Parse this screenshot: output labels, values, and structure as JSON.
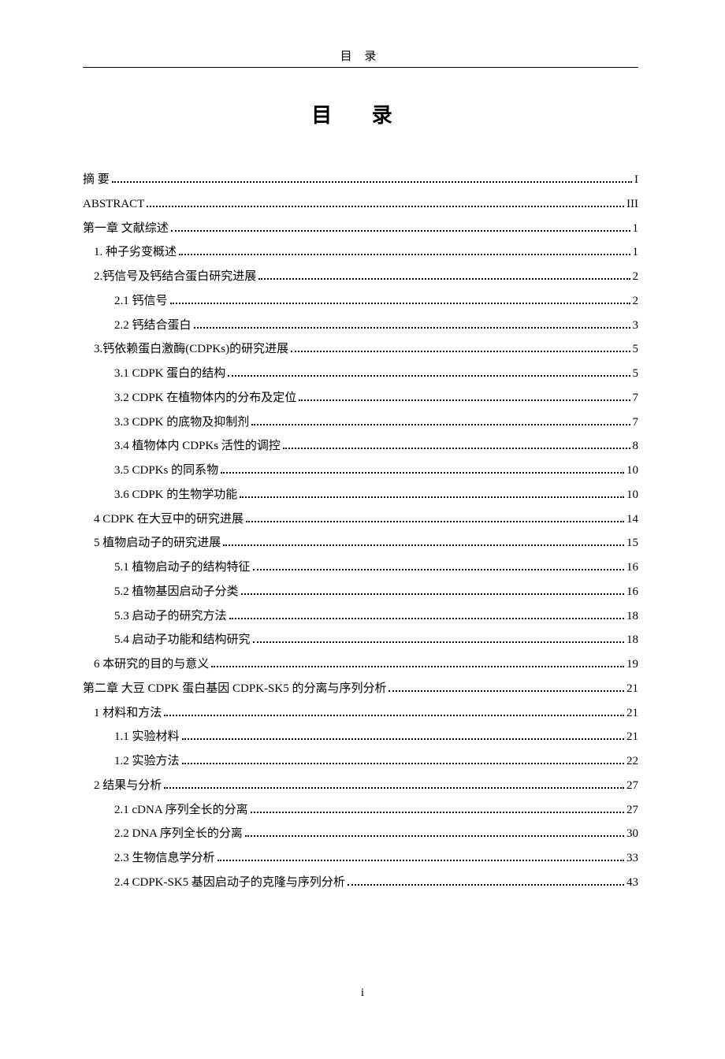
{
  "header_label": "目 录",
  "main_title": "目 录",
  "footer_page": "i",
  "entries": [
    {
      "level": 0,
      "label": "摘   要",
      "page": "I"
    },
    {
      "level": 0,
      "label": "ABSTRACT",
      "page": "III"
    },
    {
      "level": 0,
      "label": "第一章 文献综述",
      "page": "1"
    },
    {
      "level": 1,
      "label": "1.  种子劣变概述",
      "page": "1"
    },
    {
      "level": 1,
      "label": "2.钙信号及钙结合蛋白研究进展",
      "page": "2"
    },
    {
      "level": 2,
      "label": "2.1 钙信号",
      "page": "2"
    },
    {
      "level": 2,
      "label": "2.2 钙结合蛋白",
      "page": "3"
    },
    {
      "level": 1,
      "label": "3.钙依赖蛋白激酶(CDPKs)的研究进展",
      "page": "5"
    },
    {
      "level": 2,
      "label": "3.1 CDPK 蛋白的结构",
      "page": "5"
    },
    {
      "level": 2,
      "label": "3.2 CDPK 在植物体内的分布及定位",
      "page": "7"
    },
    {
      "level": 2,
      "label": "3.3 CDPK 的底物及抑制剂",
      "page": "7"
    },
    {
      "level": 2,
      "label": "3.4   植物体内  CDPKs  活性的调控",
      "page": "8"
    },
    {
      "level": 2,
      "label": "3.5 CDPKs 的同系物",
      "page": "10"
    },
    {
      "level": 2,
      "label": "3.6 CDPK 的生物学功能",
      "page": "10"
    },
    {
      "level": 1,
      "label": "4 CDPK 在大豆中的研究进展",
      "page": "14"
    },
    {
      "level": 1,
      "label": "5 植物启动子的研究进展",
      "page": "15"
    },
    {
      "level": 2,
      "label": "5.1 植物启动子的结构特征",
      "page": "16"
    },
    {
      "level": 2,
      "label": "5.2 植物基因启动子分类",
      "page": "16"
    },
    {
      "level": 2,
      "label": "5.3 启动子的研究方法",
      "page": "18"
    },
    {
      "level": 2,
      "label": "5.4 启动子功能和结构研究",
      "page": "18"
    },
    {
      "level": 1,
      "label": "6 本研究的目的与意义",
      "page": "19"
    },
    {
      "level": 0,
      "label": "第二章   大豆 CDPK 蛋白基因 CDPK-SK5 的分离与序列分析",
      "page": "21"
    },
    {
      "level": 1,
      "label": "1 材料和方法",
      "page": "21"
    },
    {
      "level": 2,
      "label": "1.1 实验材料",
      "page": "21"
    },
    {
      "level": 2,
      "label": "1.2 实验方法",
      "page": "22"
    },
    {
      "level": 1,
      "label": "2 结果与分析",
      "page": "27"
    },
    {
      "level": 2,
      "label": "2.1 cDNA 序列全长的分离",
      "page": "27"
    },
    {
      "level": 2,
      "label": "2.2 DNA 序列全长的分离",
      "page": "30"
    },
    {
      "level": 2,
      "label": "2.3 生物信息学分析",
      "page": "33"
    },
    {
      "level": 2,
      "label": "2.4 CDPK-SK5 基因启动子的克隆与序列分析",
      "page": "43"
    }
  ]
}
